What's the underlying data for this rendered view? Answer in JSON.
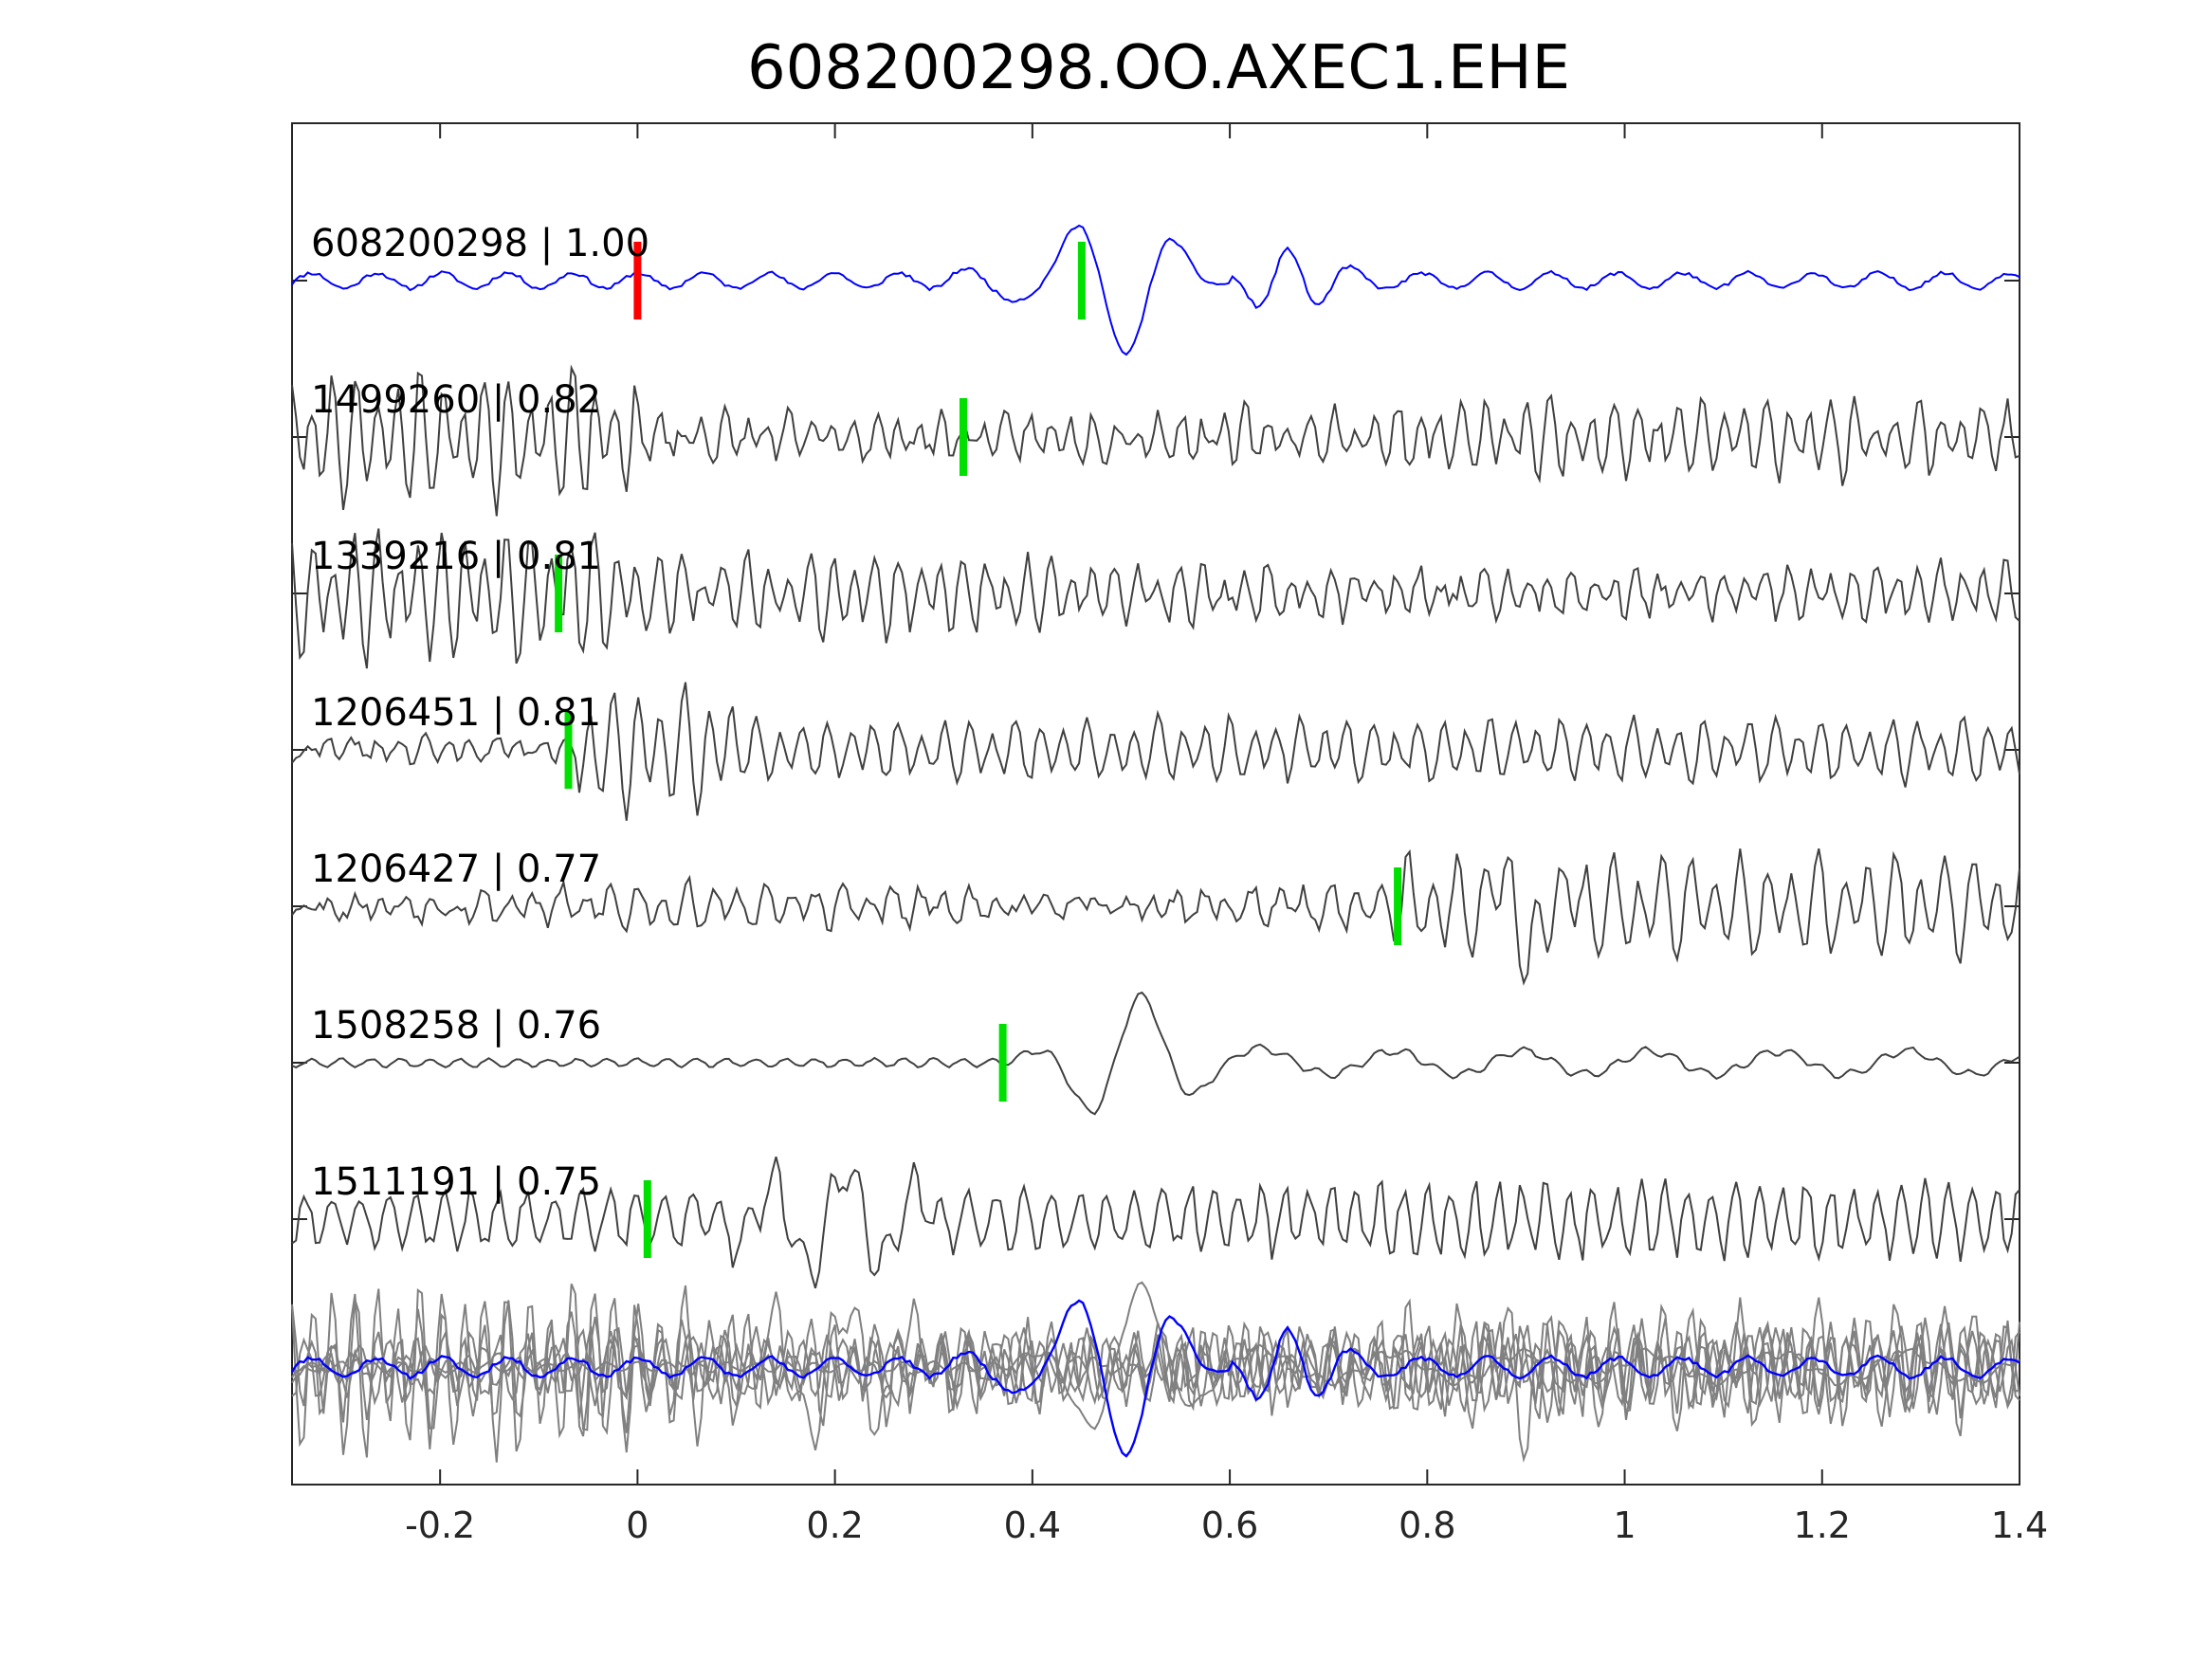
{
  "chart_data": {
    "type": "line",
    "title": "608200298.OO.AXEC1.EHE",
    "xlabel": "",
    "ylabel": "",
    "xlim": [
      -0.35,
      1.4
    ],
    "xticks": [
      -0.2,
      0,
      0.2,
      0.4,
      0.6,
      0.8,
      1,
      1.2,
      1.4
    ],
    "xtick_labels": [
      "-0.2",
      "0",
      "0.2",
      "0.4",
      "0.6",
      "0.8",
      "1",
      "1.2",
      "1.4"
    ],
    "grid": false,
    "traces": [
      {
        "id": "608200298",
        "cc": "1.00",
        "label": "608200298 | 1.00",
        "color": "#0000ff",
        "pick_time": 0.45,
        "origin_pick": 0.0,
        "pattern": "master"
      },
      {
        "id": "1499260",
        "cc": "0.82",
        "label": "1499260 | 0.82",
        "color": "#404040",
        "pick_time": 0.33,
        "pattern": "early-noise"
      },
      {
        "id": "1339216",
        "cc": "0.81",
        "label": "1339216 | 0.81",
        "color": "#404040",
        "pick_time": -0.08,
        "pattern": "early-noise"
      },
      {
        "id": "1206451",
        "cc": "0.81",
        "label": "1206451 | 0.81",
        "color": "#404040",
        "pick_time": -0.07,
        "pattern": "burst-0"
      },
      {
        "id": "1206427",
        "cc": "0.77",
        "label": "1206427 | 0.77",
        "color": "#404040",
        "pick_time": 0.77,
        "pattern": "late-burst"
      },
      {
        "id": "1508258",
        "cc": "0.76",
        "label": "1508258 | 0.76",
        "color": "#404040",
        "pick_time": 0.37,
        "pattern": "smooth"
      },
      {
        "id": "1511191",
        "cc": "0.75",
        "label": "1511191 | 0.75",
        "color": "#404040",
        "pick_time": 0.01,
        "pattern": "mixed"
      }
    ],
    "stack": {
      "master_color": "#0000ff",
      "others_color": "#808080"
    },
    "colors": {
      "origin_pick": "#ff0000",
      "pick": "#00e000",
      "axes": "#262626"
    }
  }
}
